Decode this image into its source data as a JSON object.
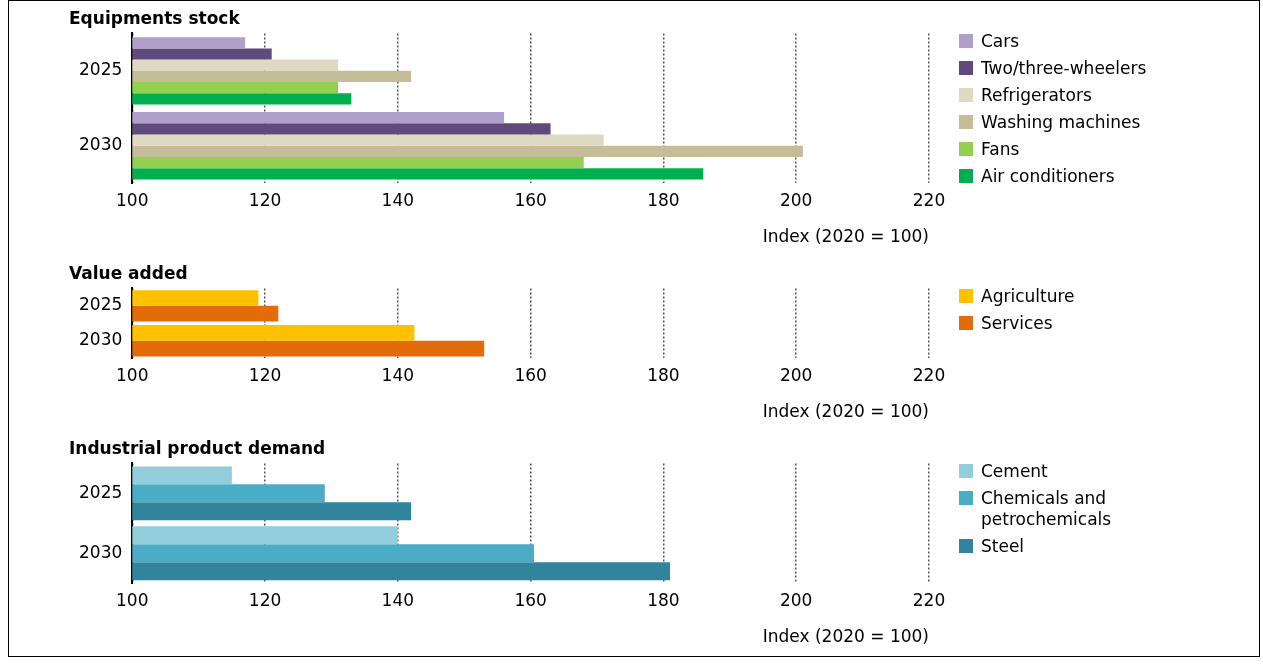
{
  "chart_data": [
    {
      "type": "bar",
      "orientation": "horizontal",
      "title": "Equipments stock",
      "xlabel": "Index (2020 = 100)",
      "categories": [
        "2025",
        "2030"
      ],
      "xlim": [
        100,
        220
      ],
      "xticks": [
        100,
        120,
        140,
        160,
        180,
        200,
        220
      ],
      "grid": "x",
      "legend": "right",
      "series": [
        {
          "name": "Cars",
          "color": "#b09fca",
          "values": [
            117,
            156
          ]
        },
        {
          "name": "Two/three-wheelers",
          "color": "#604a7b",
          "values": [
            121,
            163
          ]
        },
        {
          "name": "Refrigerators",
          "color": "#ddd9c3",
          "values": [
            131,
            171
          ]
        },
        {
          "name": "Washing machines",
          "color": "#c4bd97",
          "values": [
            142,
            201
          ]
        },
        {
          "name": "Fans",
          "color": "#92d050",
          "values": [
            131,
            168
          ]
        },
        {
          "name": "Air conditioners",
          "color": "#00b050",
          "values": [
            133,
            186
          ]
        }
      ]
    },
    {
      "type": "bar",
      "orientation": "horizontal",
      "title": "Value added",
      "xlabel": "Index (2020 = 100)",
      "categories": [
        "2025",
        "2030"
      ],
      "xlim": [
        100,
        220
      ],
      "xticks": [
        100,
        120,
        140,
        160,
        180,
        200,
        220
      ],
      "grid": "x",
      "legend": "right",
      "series": [
        {
          "name": "Agriculture",
          "color": "#ffc000",
          "values": [
            119,
            142.5
          ]
        },
        {
          "name": "Services",
          "color": "#e36c09",
          "values": [
            122,
            153
          ]
        }
      ]
    },
    {
      "type": "bar",
      "orientation": "horizontal",
      "title": "Industrial product demand",
      "xlabel": "Index (2020 = 100)",
      "categories": [
        "2025",
        "2030"
      ],
      "xlim": [
        100,
        220
      ],
      "xticks": [
        100,
        120,
        140,
        160,
        180,
        200,
        220
      ],
      "grid": "x",
      "legend": "right",
      "series": [
        {
          "name": "Cement",
          "color": "#92cddc",
          "values": [
            115,
            140
          ]
        },
        {
          "name": "Chemicals and petrochemicals",
          "color": "#4bacc6",
          "values": [
            129,
            160.5
          ]
        },
        {
          "name": "Steel",
          "color": "#31849b",
          "values": [
            142,
            181
          ]
        }
      ]
    }
  ]
}
